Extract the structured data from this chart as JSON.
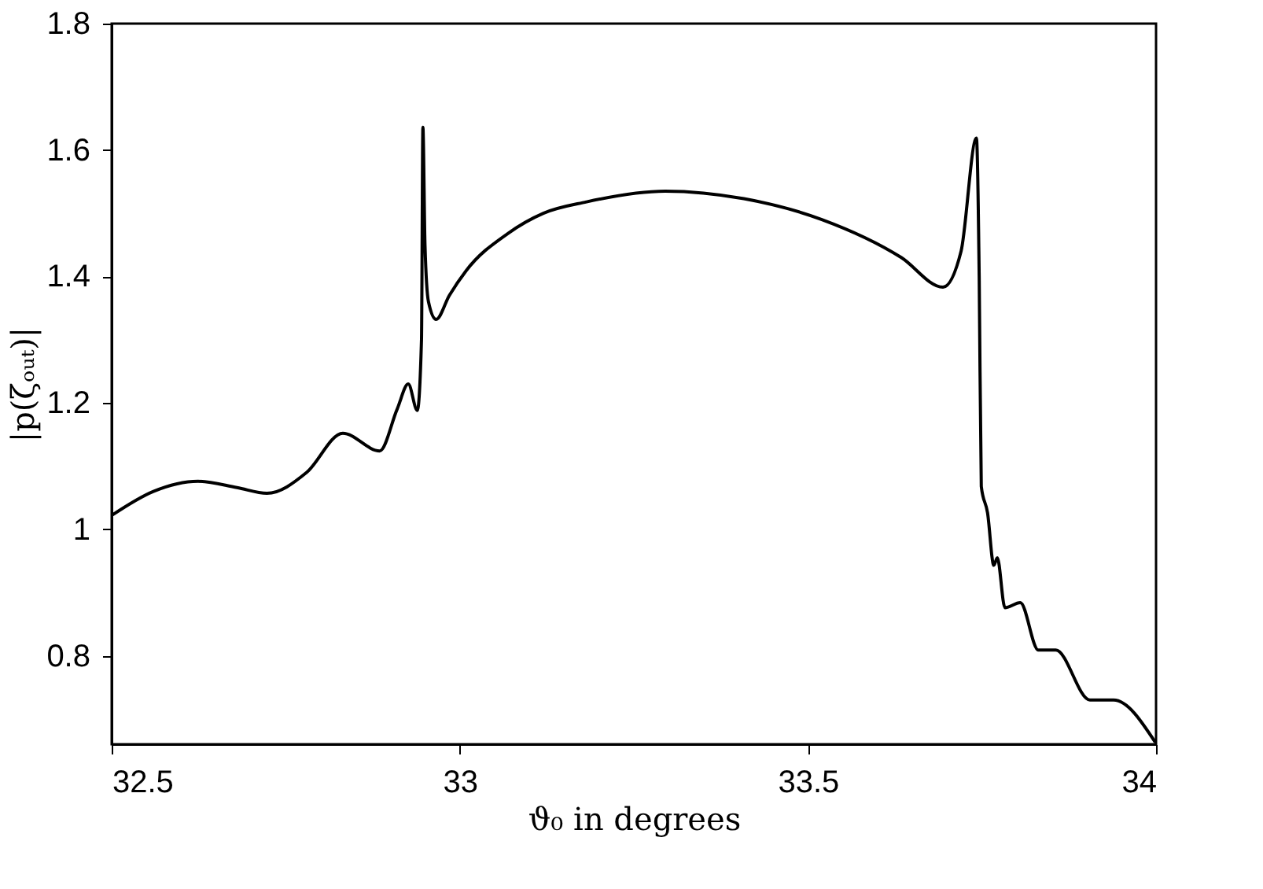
{
  "chart_data": {
    "type": "line",
    "xlabel": "ϑ₀ in degrees",
    "ylabel": "|p(ζₒᵤₜ)|",
    "x": [
      32.5,
      32.56,
      32.624,
      32.68,
      32.723,
      32.78,
      32.832,
      32.885,
      32.91,
      32.926,
      32.939,
      32.945,
      32.947,
      32.95,
      32.955,
      32.966,
      32.985,
      33.009,
      33.069,
      33.12,
      33.182,
      33.295,
      33.408,
      33.52,
      33.634,
      33.694,
      33.72,
      33.742,
      33.746,
      33.749,
      33.758,
      33.767,
      33.772,
      33.783,
      33.805,
      33.831,
      33.856,
      33.905,
      33.939,
      33.999
    ],
    "series": [
      {
        "color": "#000000",
        "values": [
          1.022,
          1.06,
          1.076,
          1.066,
          1.057,
          1.09,
          1.152,
          1.124,
          1.19,
          1.23,
          1.188,
          1.3,
          1.636,
          1.45,
          1.36,
          1.332,
          1.37,
          1.409,
          1.468,
          1.5,
          1.518,
          1.535,
          1.523,
          1.49,
          1.43,
          1.383,
          1.44,
          1.619,
          1.4,
          1.068,
          1.026,
          0.943,
          0.955,
          0.876,
          0.884,
          0.809,
          0.809,
          0.73,
          0.73,
          0.663
        ]
      }
    ],
    "xlim": [
      32.5,
      34
    ],
    "xticks": [
      32.5,
      33,
      33.5,
      34
    ],
    "ylim": [
      0.66,
      1.8
    ],
    "yticks": [
      0.8,
      1,
      1.2,
      1.4,
      1.6,
      1.8
    ],
    "grid": false,
    "legend": false,
    "marker": "none",
    "line_style": "solid"
  }
}
